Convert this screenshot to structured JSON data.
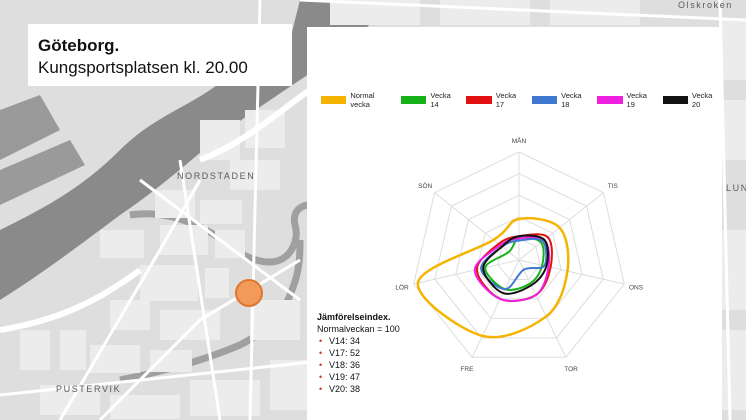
{
  "map": {
    "labels": {
      "olskroken": "Olskroken",
      "nordstaden": "NORDSTADEN",
      "pustervik": "PUSTERVIK",
      "lun": "LUN"
    }
  },
  "title": {
    "city": "Göteborg.",
    "place": "Kungsportsplatsen kl. 20.00"
  },
  "colors": {
    "accent": "#e07b30",
    "normal": "#f5b400",
    "v14": "#17b217",
    "v17": "#e31212",
    "v18": "#3e78d0",
    "v19": "#ee1fe0",
    "v20": "#111111"
  },
  "index": {
    "heading": "Jämförelseindex.",
    "base": "Normalveckan = 100",
    "items": [
      "V14: 34",
      "V17: 52",
      "V18: 36",
      "V19: 47",
      "V20: 38"
    ]
  },
  "chart_data": {
    "type": "radar",
    "categories": [
      "MÅN",
      "TIS",
      "ONS",
      "TOR",
      "FRE",
      "LÖR",
      "SÖN"
    ],
    "rmax": 100,
    "rings": 5,
    "legend_position": "top",
    "series": [
      {
        "name": "Normal vecka",
        "color": "#f5b400",
        "values": [
          38,
          48,
          46,
          58,
          78,
          96,
          30
        ]
      },
      {
        "name": "Vecka 14",
        "color": "#17b217",
        "values": [
          20,
          26,
          22,
          24,
          30,
          32,
          12
        ]
      },
      {
        "name": "Vecka 17",
        "color": "#e31212",
        "values": [
          22,
          34,
          30,
          36,
          40,
          40,
          24
        ]
      },
      {
        "name": "Vecka 18",
        "color": "#3e78d0",
        "values": [
          18,
          28,
          24,
          10,
          30,
          36,
          20
        ]
      },
      {
        "name": "Vecka 19",
        "color": "#ee1fe0",
        "values": [
          20,
          30,
          28,
          36,
          40,
          42,
          22
        ]
      },
      {
        "name": "Vecka 20",
        "color": "#111111",
        "values": [
          22,
          30,
          26,
          26,
          34,
          34,
          20
        ]
      }
    ]
  }
}
